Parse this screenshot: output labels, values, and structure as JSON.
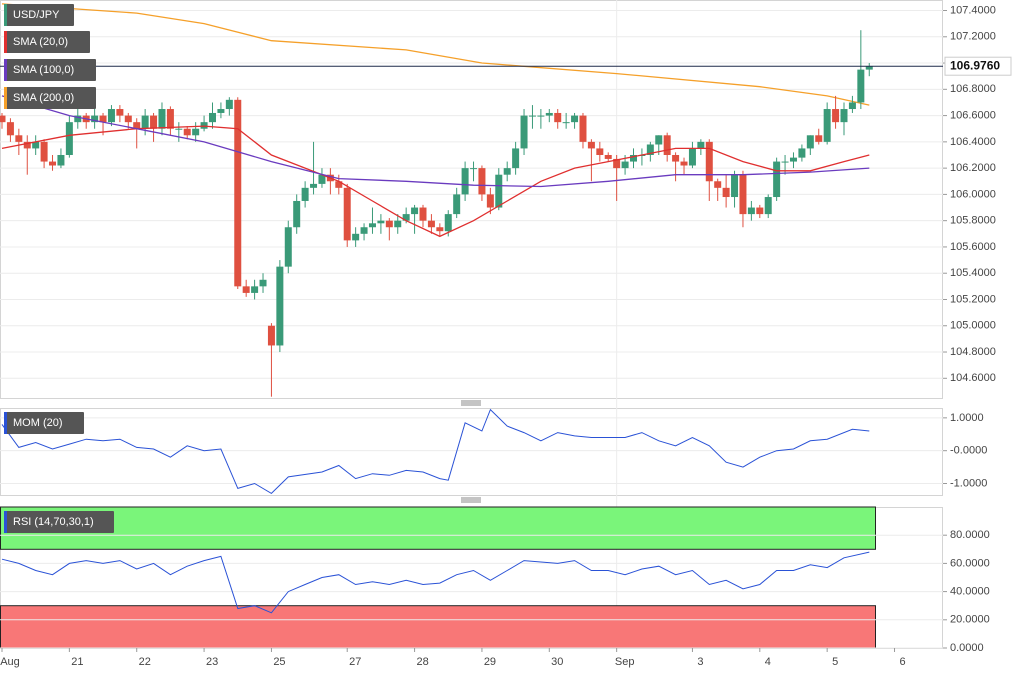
{
  "chart_data": {
    "type": "candlestick",
    "title": "USD/JPY",
    "up_color": "#3a9a78",
    "down_color": "#df5040",
    "categories": [
      "Aug",
      null,
      null,
      null,
      null,
      null,
      null,
      null,
      "21",
      null,
      null,
      null,
      null,
      null,
      null,
      null,
      "22",
      null,
      null,
      null,
      null,
      null,
      null,
      null,
      "23",
      null,
      null,
      null,
      null,
      null,
      null,
      null,
      "25",
      null,
      null,
      null,
      null,
      null,
      null,
      null,
      null,
      "27",
      null,
      null,
      null,
      null,
      null,
      null,
      null,
      "28",
      null,
      null,
      null,
      null,
      null,
      null,
      null,
      "29",
      null,
      null,
      null,
      null,
      null,
      null,
      null,
      "30",
      null,
      null,
      null,
      null,
      null,
      null,
      null,
      "Sep",
      null,
      null,
      null,
      null,
      null,
      null,
      null,
      null,
      "3",
      null,
      null,
      null,
      null,
      null,
      null,
      null,
      "4",
      null,
      null,
      null,
      null,
      null,
      null,
      null,
      "5",
      null,
      null,
      null,
      null,
      null,
      null,
      null,
      "6"
    ],
    "ohlc": [
      [
        106.6,
        106.62,
        106.5,
        106.55
      ],
      [
        106.55,
        106.58,
        106.4,
        106.45
      ],
      [
        106.45,
        106.5,
        106.3,
        106.4
      ],
      [
        106.4,
        106.45,
        106.15,
        106.35
      ],
      [
        106.35,
        106.45,
        106.3,
        106.4
      ],
      [
        106.4,
        106.42,
        106.2,
        106.25
      ],
      [
        106.25,
        106.3,
        106.18,
        106.22
      ],
      [
        106.22,
        106.35,
        106.2,
        106.3
      ],
      [
        106.3,
        106.6,
        106.28,
        106.55
      ],
      [
        106.55,
        106.65,
        106.5,
        106.6
      ],
      [
        106.6,
        106.62,
        106.5,
        106.55
      ],
      [
        106.55,
        106.65,
        106.5,
        106.6
      ],
      [
        106.6,
        106.62,
        106.45,
        106.55
      ],
      [
        106.55,
        106.68,
        106.52,
        106.65
      ],
      [
        106.65,
        106.68,
        106.55,
        106.6
      ],
      [
        106.6,
        106.62,
        106.5,
        106.55
      ],
      [
        106.55,
        106.58,
        106.35,
        106.5
      ],
      [
        106.5,
        106.65,
        106.45,
        106.6
      ],
      [
        106.6,
        106.62,
        106.4,
        106.5
      ],
      [
        106.5,
        106.7,
        106.45,
        106.65
      ],
      [
        106.65,
        106.67,
        106.45,
        106.5
      ],
      [
        106.5,
        106.55,
        106.4,
        106.5
      ],
      [
        106.5,
        106.52,
        106.42,
        106.45
      ],
      [
        106.45,
        106.55,
        106.4,
        106.5
      ],
      [
        106.5,
        106.6,
        106.48,
        106.55
      ],
      [
        106.55,
        106.7,
        106.5,
        106.62
      ],
      [
        106.62,
        106.7,
        106.58,
        106.65
      ],
      [
        106.65,
        106.74,
        106.6,
        106.72
      ],
      [
        106.72,
        106.74,
        105.28,
        105.3
      ],
      [
        105.3,
        105.35,
        105.22,
        105.25
      ],
      [
        105.25,
        105.35,
        105.2,
        105.3
      ],
      [
        105.3,
        105.4,
        105.25,
        105.35
      ],
      [
        105.0,
        105.02,
        104.46,
        104.85
      ],
      [
        104.85,
        105.5,
        104.8,
        105.45
      ],
      [
        105.45,
        105.8,
        105.4,
        105.75
      ],
      [
        105.75,
        106.0,
        105.7,
        105.95
      ],
      [
        105.95,
        106.1,
        105.9,
        106.05
      ],
      [
        106.05,
        106.4,
        106.0,
        106.08
      ],
      [
        106.08,
        106.2,
        106.05,
        106.15
      ],
      [
        106.15,
        106.2,
        106.0,
        106.1
      ],
      [
        106.1,
        106.15,
        106.0,
        106.05
      ],
      [
        106.05,
        106.08,
        105.6,
        105.65
      ],
      [
        105.65,
        105.75,
        105.6,
        105.7
      ],
      [
        105.7,
        105.78,
        105.65,
        105.75
      ],
      [
        105.75,
        105.9,
        105.7,
        105.78
      ],
      [
        105.78,
        105.85,
        105.7,
        105.8
      ],
      [
        105.8,
        105.82,
        105.65,
        105.75
      ],
      [
        105.75,
        105.85,
        105.7,
        105.8
      ],
      [
        105.8,
        105.9,
        105.78,
        105.85
      ],
      [
        105.85,
        105.92,
        105.7,
        105.9
      ],
      [
        105.9,
        105.92,
        105.75,
        105.8
      ],
      [
        105.8,
        105.85,
        105.7,
        105.75
      ],
      [
        105.75,
        105.78,
        105.68,
        105.72
      ],
      [
        105.72,
        105.88,
        105.68,
        105.85
      ],
      [
        105.85,
        106.05,
        105.82,
        106.0
      ],
      [
        106.0,
        106.25,
        105.95,
        106.2
      ],
      [
        106.2,
        106.25,
        106.1,
        106.2
      ],
      [
        106.2,
        106.22,
        105.95,
        106.0
      ],
      [
        106.0,
        106.05,
        105.85,
        105.9
      ],
      [
        105.9,
        106.2,
        105.88,
        106.15
      ],
      [
        106.15,
        106.25,
        106.1,
        106.2
      ],
      [
        106.2,
        106.4,
        106.15,
        106.35
      ],
      [
        106.35,
        106.65,
        106.3,
        106.6
      ],
      [
        106.6,
        106.68,
        106.5,
        106.6
      ],
      [
        106.6,
        106.65,
        106.5,
        106.6
      ],
      [
        106.6,
        106.65,
        106.55,
        106.62
      ],
      [
        106.62,
        106.65,
        106.5,
        106.55
      ],
      [
        106.55,
        106.62,
        106.5,
        106.55
      ],
      [
        106.55,
        106.62,
        106.5,
        106.6
      ],
      [
        106.6,
        106.62,
        106.35,
        106.4
      ],
      [
        106.4,
        106.42,
        106.1,
        106.35
      ],
      [
        106.35,
        106.4,
        106.25,
        106.3
      ],
      [
        106.3,
        106.32,
        106.25,
        106.27
      ],
      [
        106.27,
        106.3,
        105.95,
        106.2
      ],
      [
        106.2,
        106.3,
        106.15,
        106.25
      ],
      [
        106.25,
        106.35,
        106.2,
        106.3
      ],
      [
        106.3,
        106.35,
        106.22,
        106.3
      ],
      [
        106.3,
        106.4,
        106.25,
        106.38
      ],
      [
        106.38,
        106.45,
        106.3,
        106.45
      ],
      [
        106.45,
        106.47,
        106.25,
        106.3
      ],
      [
        106.3,
        106.32,
        106.1,
        106.25
      ],
      [
        106.25,
        106.28,
        106.15,
        106.22
      ],
      [
        106.22,
        106.4,
        106.2,
        106.35
      ],
      [
        106.35,
        106.42,
        106.3,
        106.4
      ],
      [
        106.4,
        106.42,
        105.95,
        106.1
      ],
      [
        106.1,
        106.12,
        105.95,
        106.05
      ],
      [
        106.05,
        106.15,
        105.9,
        105.98
      ],
      [
        105.98,
        106.18,
        105.9,
        106.15
      ],
      [
        106.15,
        106.18,
        105.75,
        105.85
      ],
      [
        105.85,
        105.95,
        105.8,
        105.9
      ],
      [
        105.9,
        105.92,
        105.82,
        105.85
      ],
      [
        105.85,
        106.0,
        105.82,
        105.98
      ],
      [
        105.98,
        106.28,
        105.95,
        106.25
      ],
      [
        106.25,
        106.3,
        106.15,
        106.25
      ],
      [
        106.25,
        106.32,
        106.2,
        106.28
      ],
      [
        106.28,
        106.38,
        106.25,
        106.35
      ],
      [
        106.35,
        106.45,
        106.3,
        106.45
      ],
      [
        106.45,
        106.5,
        106.38,
        106.4
      ],
      [
        106.4,
        106.7,
        106.38,
        106.65
      ],
      [
        106.65,
        106.75,
        106.5,
        106.55
      ],
      [
        106.55,
        106.7,
        106.45,
        106.65
      ],
      [
        106.65,
        106.75,
        106.62,
        106.7
      ],
      [
        106.7,
        107.25,
        106.65,
        106.95
      ],
      [
        106.95,
        107.0,
        106.9,
        106.976
      ],
      null,
      null,
      null
    ],
    "ylim": [
      104.45,
      107.48
    ],
    "yticks": [
      {
        "value": 104.6,
        "label": "104.6000"
      },
      {
        "value": 104.8,
        "label": "104.8000"
      },
      {
        "value": 105.0,
        "label": "105.0000"
      },
      {
        "value": 105.2,
        "label": "105.2000"
      },
      {
        "value": 105.4,
        "label": "105.4000"
      },
      {
        "value": 105.6,
        "label": "105.6000"
      },
      {
        "value": 105.8,
        "label": "105.8000"
      },
      {
        "value": 106.0,
        "label": "106.0000"
      },
      {
        "value": 106.2,
        "label": "106.2000"
      },
      {
        "value": 106.4,
        "label": "106.4000"
      },
      {
        "value": 106.6,
        "label": "106.6000"
      },
      {
        "value": 106.8,
        "label": "106.8000"
      },
      {
        "value": 107.0,
        "label": "107.0000"
      },
      {
        "value": 107.2,
        "label": "107.2000"
      },
      {
        "value": 107.4,
        "label": "107.4000"
      }
    ],
    "last": {
      "value": 106.976,
      "label": "106.9760"
    },
    "overlays": [
      {
        "name": "SMA (20,0)",
        "color": "#e02f2f",
        "x": [
          0,
          8,
          16,
          24,
          28,
          32,
          36,
          40,
          44,
          48,
          52,
          56,
          60,
          64,
          68,
          72,
          76,
          80,
          84,
          88,
          92,
          96,
          100,
          103
        ],
        "values": [
          106.35,
          106.45,
          106.5,
          106.52,
          106.5,
          106.3,
          106.2,
          106.1,
          105.95,
          105.8,
          105.68,
          105.8,
          105.95,
          106.1,
          106.2,
          106.25,
          106.3,
          106.35,
          106.35,
          106.25,
          106.18,
          106.18,
          106.25,
          106.3
        ]
      },
      {
        "name": "SMA (100,0)",
        "color": "#6a3bbf",
        "x": [
          0,
          8,
          16,
          24,
          32,
          40,
          48,
          56,
          64,
          72,
          80,
          88,
          96,
          103
        ],
        "values": [
          106.75,
          106.6,
          106.5,
          106.4,
          106.25,
          106.12,
          106.1,
          106.07,
          106.06,
          106.1,
          106.15,
          106.15,
          106.17,
          106.2
        ]
      },
      {
        "name": "SMA (200,0)",
        "color": "#f5a02a",
        "x": [
          0,
          16,
          24,
          32,
          48,
          57,
          73,
          90,
          98,
          103
        ],
        "values": [
          107.45,
          107.38,
          107.3,
          107.17,
          107.1,
          107.0,
          106.92,
          106.82,
          106.75,
          106.68
        ]
      }
    ],
    "indicators": [
      {
        "name": "MOM (20)",
        "type": "line",
        "color": "#2a52d6",
        "ylim": [
          -1.35,
          1.3
        ],
        "yticks": [
          {
            "value": -1,
            "label": "-1.0000"
          },
          {
            "value": 0,
            "label": "-0.0000"
          },
          {
            "value": 1,
            "label": "1.0000"
          }
        ],
        "x": [
          0,
          2,
          4,
          6,
          8,
          10,
          12,
          14,
          16,
          18,
          20,
          22,
          24,
          26,
          28,
          30,
          32,
          34,
          38,
          40,
          42,
          44,
          46,
          48,
          50,
          52,
          53,
          55,
          57,
          58,
          60,
          62,
          64,
          66,
          68,
          70,
          72,
          74,
          76,
          78,
          80,
          82,
          84,
          86,
          88,
          90,
          92,
          94,
          96,
          98,
          101,
          103
        ],
        "values": [
          0.8,
          0.1,
          0.25,
          0.05,
          0.2,
          0.35,
          0.3,
          0.35,
          0.1,
          0.05,
          -0.2,
          0.15,
          0,
          0.05,
          -1.15,
          -1,
          -1.3,
          -0.8,
          -0.65,
          -0.45,
          -0.85,
          -0.7,
          -0.75,
          -0.6,
          -0.65,
          -0.85,
          -0.9,
          0.85,
          0.6,
          1.25,
          0.75,
          0.55,
          0.3,
          0.55,
          0.45,
          0.4,
          0.4,
          0.4,
          0.55,
          0.3,
          0.15,
          0.4,
          0.15,
          -0.35,
          -0.5,
          -0.2,
          0,
          0.05,
          0.3,
          0.35,
          0.65,
          0.6
        ]
      },
      {
        "name": "RSI (14,70,30,1)",
        "type": "line",
        "color": "#2a52d6",
        "ylim": [
          0,
          100
        ],
        "yticks": [
          {
            "value": 0,
            "label": "0.0000"
          },
          {
            "value": 20,
            "label": "20.0000"
          },
          {
            "value": 40,
            "label": "40.0000"
          },
          {
            "value": 60,
            "label": "60.0000"
          },
          {
            "value": 80,
            "label": "80.0000"
          }
        ],
        "bands": [
          {
            "from": 70,
            "to": 100,
            "color": "#7af57a"
          },
          {
            "from": 0,
            "to": 30,
            "color": "#f87777"
          }
        ],
        "x": [
          0,
          2,
          4,
          6,
          8,
          10,
          12,
          14,
          16,
          18,
          20,
          22,
          24,
          26,
          28,
          30,
          32,
          34,
          36,
          38,
          40,
          42,
          44,
          46,
          48,
          50,
          52,
          54,
          56,
          58,
          60,
          62,
          64,
          66,
          68,
          70,
          72,
          74,
          76,
          78,
          80,
          82,
          84,
          86,
          88,
          90,
          92,
          94,
          96,
          98,
          100,
          103
        ],
        "values": [
          63,
          60,
          55,
          52,
          60,
          62,
          60,
          62,
          56,
          60,
          52,
          58,
          62,
          65,
          28,
          30,
          25,
          40,
          45,
          50,
          52,
          45,
          47,
          45,
          48,
          45,
          46,
          52,
          55,
          48,
          55,
          62,
          61,
          60,
          62,
          55,
          55,
          52,
          56,
          58,
          52,
          55,
          45,
          48,
          42,
          45,
          55,
          55,
          59,
          57,
          64,
          68
        ]
      }
    ]
  }
}
